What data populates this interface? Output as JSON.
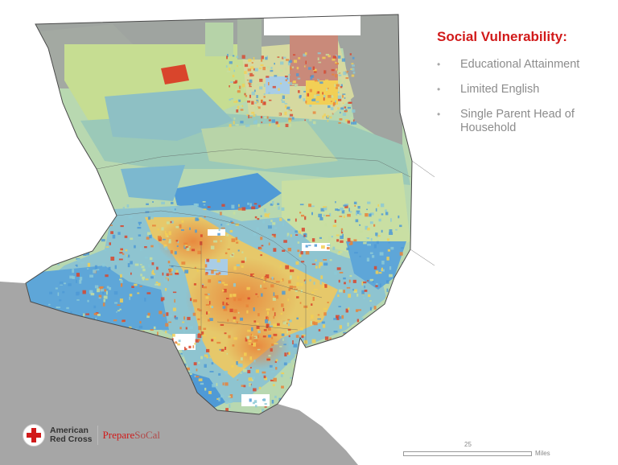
{
  "slide": {
    "title": "Social Vulnerability:",
    "bullets": [
      "Educational Attainment",
      "Limited English",
      "Single Parent Head of Household"
    ],
    "bullet_symbol": "•"
  },
  "map": {
    "legend_colors": {
      "low": "#4f9ad6",
      "low_mid": "#8cc9d6",
      "mid": "#c7dfa0",
      "mid_high": "#f2cf55",
      "high": "#e8833a",
      "very_high": "#d9452c",
      "ocean": "#a6a6a6",
      "no_data": "#a3a3a3"
    },
    "scale_bar": {
      "value": "25",
      "unit": "Miles"
    }
  },
  "branding": {
    "org_line1": "American",
    "org_line2": "Red Cross",
    "program_part1": "Prepare",
    "program_part2": "SoCal",
    "cross_color": "#d11a1a"
  }
}
